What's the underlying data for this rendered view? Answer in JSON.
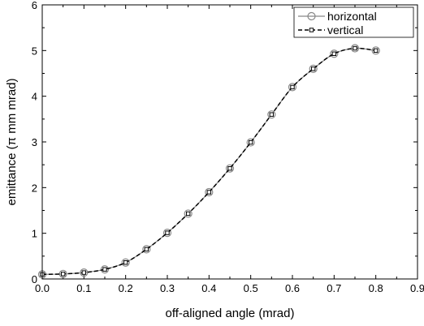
{
  "chart_data": {
    "type": "line",
    "xlabel": "off-aligned angle (mrad)",
    "ylabel": "emittance (π mm mrad)",
    "xlim": [
      0.0,
      0.9
    ],
    "ylim": [
      0,
      6
    ],
    "x_ticks": [
      "0.0",
      "0.1",
      "0.2",
      "0.3",
      "0.4",
      "0.5",
      "0.6",
      "0.7",
      "0.8",
      "0.9"
    ],
    "y_ticks": [
      "0",
      "1",
      "2",
      "3",
      "4",
      "5",
      "6"
    ],
    "grid": false,
    "legend_position": "top-right",
    "x": [
      0.0,
      0.05,
      0.1,
      0.15,
      0.2,
      0.25,
      0.3,
      0.35,
      0.4,
      0.45,
      0.5,
      0.55,
      0.6,
      0.65,
      0.7,
      0.75,
      0.8
    ],
    "series": [
      {
        "name": "horizontal",
        "color": "#888888",
        "marker": "circle",
        "line_style": "solid",
        "values": [
          0.1,
          0.11,
          0.14,
          0.21,
          0.36,
          0.65,
          1.01,
          1.43,
          1.9,
          2.42,
          2.99,
          3.6,
          4.2,
          4.6,
          4.93,
          5.05,
          5.0
        ]
      },
      {
        "name": "vertical",
        "color": "#000000",
        "marker": "square",
        "line_style": "dashed",
        "values": [
          0.1,
          0.11,
          0.14,
          0.21,
          0.36,
          0.65,
          1.01,
          1.43,
          1.9,
          2.42,
          2.99,
          3.6,
          4.2,
          4.6,
          4.93,
          5.05,
          5.0
        ]
      }
    ]
  }
}
